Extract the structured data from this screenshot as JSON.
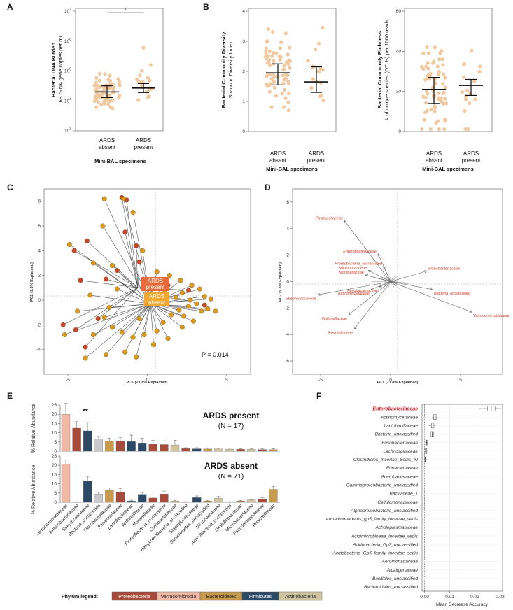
{
  "panels": {
    "A": {
      "label": "A"
    },
    "B": {
      "label": "B"
    },
    "C": {
      "label": "C"
    },
    "D": {
      "label": "D"
    },
    "E": {
      "label": "E"
    },
    "F": {
      "label": "F"
    }
  },
  "colors": {
    "dot": "#f0c9a0",
    "proteobacteria": "#a84b3c",
    "verrucomicrobia": "#f2b8a6",
    "bacteroidetes": "#c79a4d",
    "firmicutes": "#2c4a66",
    "actinobacteria": "#d0c4a0",
    "unclassified": "#c9c9c9"
  },
  "scatter_panels": {
    "categories": [
      "ARDS\nabsent",
      "ARDS\npresent"
    ],
    "cat_line1": [
      "ARDS",
      "ARDS"
    ],
    "cat_line2": [
      "absent",
      "present"
    ],
    "xtitle": "Mini-BAL specimens"
  },
  "chart_data": [
    {
      "id": "A",
      "type": "scatter",
      "title": "",
      "ylabel_line1": "Bacterial DNA Burden",
      "ylabel_line2": "16S rRNA gene copies per mL",
      "xlabel": "Mini-BAL specimens",
      "categories": [
        "ARDS absent",
        "ARDS present"
      ],
      "y_scale": "log",
      "ylim": [
        1000,
        10000000
      ],
      "yticks": [
        "10^3",
        "10^4",
        "10^5",
        "10^6",
        "10^7"
      ],
      "yticks_base": [
        "10",
        "10",
        "10",
        "10",
        "10"
      ],
      "yticks_exp": [
        "3",
        "4",
        "5",
        "6",
        "7"
      ],
      "summary": [
        {
          "group": "ARDS absent",
          "median": 20000,
          "q1": 13000,
          "q3": 32000
        },
        {
          "group": "ARDS present",
          "median": 27000,
          "q1": 19000,
          "q3": 38000
        }
      ],
      "significance": "*"
    },
    {
      "id": "B1",
      "type": "scatter",
      "title": "",
      "ylabel_line1": "Bacterial Community Diversity",
      "ylabel_line2": "Shannon Diversity Index",
      "xlabel": "Mini-BAL specimens",
      "categories": [
        "ARDS absent",
        "ARDS present"
      ],
      "ylim": [
        0,
        4
      ],
      "yticks": [
        "0",
        "1",
        "2",
        "3",
        "4"
      ],
      "summary": [
        {
          "group": "ARDS absent",
          "median": 1.95,
          "q1": 1.55,
          "q3": 2.25
        },
        {
          "group": "ARDS present",
          "median": 1.65,
          "q1": 1.3,
          "q3": 2.15
        }
      ]
    },
    {
      "id": "B2",
      "type": "scatter",
      "title": "",
      "ylabel_line1": "Bacterial Community Richness",
      "ylabel_line2": "# of unique species (OTUs) per 1000 reads",
      "xlabel": "Mini-BAL specimens",
      "categories": [
        "ARDS absent",
        "ARDS present"
      ],
      "ylim": [
        0,
        60
      ],
      "yticks": [
        "0",
        "20",
        "40",
        "60"
      ],
      "summary": [
        {
          "group": "ARDS absent",
          "median": 21,
          "q1": 14,
          "q3": 27
        },
        {
          "group": "ARDS present",
          "median": 23,
          "q1": 18,
          "q3": 26
        }
      ]
    },
    {
      "id": "C",
      "type": "scatter",
      "title": "",
      "xlabel": "PC1 (21.8% Explained)",
      "ylabel": "PC2 (9.3% Explained)",
      "xlim": [
        -6.5,
        6.5
      ],
      "ylim": [
        -6,
        9
      ],
      "xticks": [
        "-5",
        "0",
        "5"
      ],
      "yticks": [
        "-4",
        "-2",
        "0",
        "2",
        "4",
        "6",
        "8"
      ],
      "centroids": [
        {
          "label_line1": "ARDS",
          "label_line2": "present",
          "x": -0.6,
          "y": 1.0,
          "color": "#e86a3a"
        },
        {
          "label_line1": "ARDS",
          "label_line2": "absent",
          "x": 0.2,
          "y": -0.3,
          "color": "#f0a830"
        }
      ],
      "annotation": "P = 0.014"
    },
    {
      "id": "D",
      "type": "scatter",
      "title": "",
      "xlabel": "PC1 (21.8% Explained)",
      "ylabel": "PC2 (9.3% Explained)",
      "xlim": [
        -7,
        8
      ],
      "ylim": [
        -7,
        7
      ],
      "xticks": [
        "-5",
        "0",
        "5"
      ],
      "yticks": [
        "-6",
        "-4",
        "-2",
        "0",
        "2",
        "4",
        "6"
      ],
      "vectors": [
        {
          "name": "Pasteurellaceae",
          "x": -3.3,
          "y": 4.6
        },
        {
          "name": "Enterobacteriaceae",
          "x": -0.9,
          "y": 2.1
        },
        {
          "name": "Proteobacteria_unclassified",
          "x": -0.5,
          "y": 1.15
        },
        {
          "name": "Micrococcaceae",
          "x": -1.6,
          "y": 0.85
        },
        {
          "name": "Moraxellaceae",
          "x": -1.8,
          "y": 0.5
        },
        {
          "name": "Flavobacteriaceae",
          "x": 2.6,
          "y": 0.8
        },
        {
          "name": "Streptococcaceae",
          "x": -5.2,
          "y": -1.0
        },
        {
          "name": "Actinomycetaceae",
          "x": -1.4,
          "y": -0.6
        },
        {
          "name": "Fusobacteriaceae",
          "x": -0.8,
          "y": -0.4
        },
        {
          "name": "Bacteria_unclassified",
          "x": 3.0,
          "y": -0.6
        },
        {
          "name": "Veillonellaceae",
          "x": -3.0,
          "y": -2.5
        },
        {
          "name": "Prevotellaceae",
          "x": -2.6,
          "y": -3.6
        },
        {
          "name": "Verrucomicrobiaceae",
          "x": 5.8,
          "y": -2.3
        }
      ]
    },
    {
      "id": "E",
      "type": "bar",
      "title": "",
      "ylabel": "% Relative Abundance",
      "ylim": [
        0,
        25
      ],
      "yticks": [
        "0",
        "5",
        "10",
        "15",
        "20",
        "25"
      ],
      "categories": [
        "Verrucomicrobiaceae",
        "Enterobacteriaceae",
        "Streptococcaceae",
        "Bacteria_unclassified",
        "Flavobacteriaceae",
        "Pasteurellaceae",
        "Lactobacillaceae",
        "Veillonellaceae",
        "Moraxellaceae",
        "Proteobacteria_unclassified",
        "Coriobacteriaceae",
        "Betaproteobacteria_unclassified",
        "Staphylococcaceae",
        "Bacteroidetes_unclassified",
        "Micrococcaceae",
        "Actinobacteria_unclassified",
        "Oxalobacteraceae",
        "Microbacteriaceae",
        "Pseudomonadaceae",
        "Prevotellaceae"
      ],
      "phyla": [
        "verrucomicrobia",
        "proteobacteria",
        "firmicutes",
        "unclassified",
        "bacteroidetes",
        "proteobacteria",
        "firmicutes",
        "firmicutes",
        "proteobacteria",
        "proteobacteria",
        "actinobacteria",
        "proteobacteria",
        "firmicutes",
        "bacteroidetes",
        "actinobacteria",
        "actinobacteria",
        "proteobacteria",
        "actinobacteria",
        "proteobacteria",
        "bacteroidetes"
      ],
      "series": [
        {
          "name": "ARDS present",
          "n_label": "(N = 17)",
          "values": [
            20,
            12.5,
            11,
            6.5,
            5.5,
            5.5,
            5.2,
            4.5,
            3.8,
            3.6,
            3.4,
            1.4,
            1.3,
            1.2,
            1.2,
            1.1,
            1.0,
            1.0,
            0.9,
            0.9
          ],
          "errors": [
            6,
            3.5,
            4.5,
            1.5,
            1.5,
            2.0,
            3.5,
            2.5,
            2.0,
            2.0,
            2.5,
            0.5,
            0.6,
            0.6,
            0.5,
            0.5,
            0.4,
            0.4,
            0.4,
            0.4
          ],
          "annotation": "**"
        },
        {
          "name": "ARDS absent",
          "n_label": "(N = 71)",
          "values": [
            20.5,
            0.2,
            11.5,
            4.5,
            6.5,
            5.5,
            0.7,
            4.3,
            2.3,
            4.5,
            0.7,
            0.2,
            2.5,
            0.7,
            2.2,
            0.2,
            0.6,
            1.2,
            1.8,
            7.0
          ],
          "errors": [
            2.5,
            0.1,
            2.5,
            0.8,
            1.2,
            2.0,
            0.4,
            1.0,
            0.6,
            1.5,
            0.3,
            0.1,
            0.9,
            0.3,
            0.9,
            0.1,
            0.3,
            0.3,
            0.6,
            1.5
          ]
        }
      ],
      "legend_title": "Phylum legend:",
      "legend": [
        {
          "name": "Proteobacteria",
          "key": "proteobacteria"
        },
        {
          "name": "Verrucomicrobia",
          "key": "verrucomicrobia"
        },
        {
          "name": "Bacteroidetes",
          "key": "bacteroidetes"
        },
        {
          "name": "Firmicutes",
          "key": "firmicutes"
        },
        {
          "name": "Actinobacteria",
          "key": "actinobacteria"
        }
      ]
    },
    {
      "id": "F",
      "type": "box",
      "title": "",
      "xlabel": "Mean Decrease Accuracy",
      "xlim": [
        -0.001,
        0.031
      ],
      "xticks": [
        "0.00",
        "0.01",
        "0.02",
        "0.03"
      ],
      "xtick_values": [
        0,
        0.01,
        0.02,
        0.03
      ],
      "items": [
        {
          "name": "Enterobacteriaceae",
          "median": 0.0265,
          "q1": 0.025,
          "q3": 0.028,
          "min": 0.0215,
          "max": 0.0305,
          "highlight": true
        },
        {
          "name": "Actinomycetaceae",
          "median": 0.0042,
          "q1": 0.0036,
          "q3": 0.0046,
          "min": 0.003,
          "max": 0.0052
        },
        {
          "name": "Lactobacillaceae",
          "median": 0.0033,
          "q1": 0.0027,
          "q3": 0.0037,
          "min": 0.0018,
          "max": 0.0042
        },
        {
          "name": "Bacteria_unclassified",
          "median": 0.0031,
          "q1": 0.0025,
          "q3": 0.0035,
          "min": 0.0015,
          "max": 0.004
        },
        {
          "name": "Fusobacteriaceae",
          "median": 0.0008,
          "q1": 0.0005,
          "q3": 0.001,
          "min": 0.0002,
          "max": 0.0013
        },
        {
          "name": "Lachnospiraceae",
          "median": 0.0006,
          "q1": 0.0003,
          "q3": 0.0009,
          "min": -0.0002,
          "max": 0.0012
        },
        {
          "name": "Clostridiales_Incertae_Sedis_XI",
          "median": 0.0003,
          "q1": 0.0001,
          "q3": 0.0005,
          "min": 0,
          "max": 0.0008
        },
        {
          "name": "Eubacteriaceae",
          "median": 0,
          "q1": 0,
          "q3": 0,
          "min": 0,
          "max": 0
        },
        {
          "name": "Acetobacteraceae",
          "median": 0,
          "q1": 0,
          "q3": 0,
          "min": 0,
          "max": 0
        },
        {
          "name": "Gammaproteobacteria_unclassified",
          "median": 0,
          "q1": 0,
          "q3": 0,
          "min": 0,
          "max": 0
        },
        {
          "name": "Bacillaceae_1",
          "median": 0,
          "q1": 0,
          "q3": 0,
          "min": 0,
          "max": 0
        },
        {
          "name": "Cellulomonadaceae",
          "median": 0,
          "q1": 0,
          "q3": 0,
          "min": 0,
          "max": 0
        },
        {
          "name": "Alphaproteobacteria_unclassified",
          "median": 0,
          "q1": 0,
          "q3": 0,
          "min": 0,
          "max": 0
        },
        {
          "name": "Armatimonadetes_gp5_family_incertae_sedis",
          "median": 0,
          "q1": 0,
          "q3": 0,
          "min": 0,
          "max": 0
        },
        {
          "name": "Acholeplasmataceae",
          "median": 0,
          "q1": 0,
          "q3": 0,
          "min": 0,
          "max": 0
        },
        {
          "name": "Acidimicrobineae_incertae_sedis",
          "median": 0,
          "q1": 0,
          "q3": 0,
          "min": 0,
          "max": 0
        },
        {
          "name": "Acidobacteria_Gp3_unclassified",
          "median": 0,
          "q1": 0,
          "q3": 0,
          "min": 0,
          "max": 0
        },
        {
          "name": "Acidobacteria_Gp6_family_incertae_sedis",
          "median": 0,
          "q1": 0,
          "q3": 0,
          "min": 0,
          "max": 0
        },
        {
          "name": "Aeromonadaceae",
          "median": 0,
          "q1": 0,
          "q3": 0,
          "min": 0,
          "max": 0
        },
        {
          "name": "Alcaligenaceae",
          "median": 0,
          "q1": 0,
          "q3": 0,
          "min": 0,
          "max": 0
        },
        {
          "name": "Bacillales_unclassified",
          "median": 0,
          "q1": 0,
          "q3": 0,
          "min": 0,
          "max": 0
        },
        {
          "name": "Bacteroidales_unclassified",
          "median": 0,
          "q1": 0,
          "q3": 0,
          "min": 0,
          "max": 0
        }
      ]
    }
  ]
}
